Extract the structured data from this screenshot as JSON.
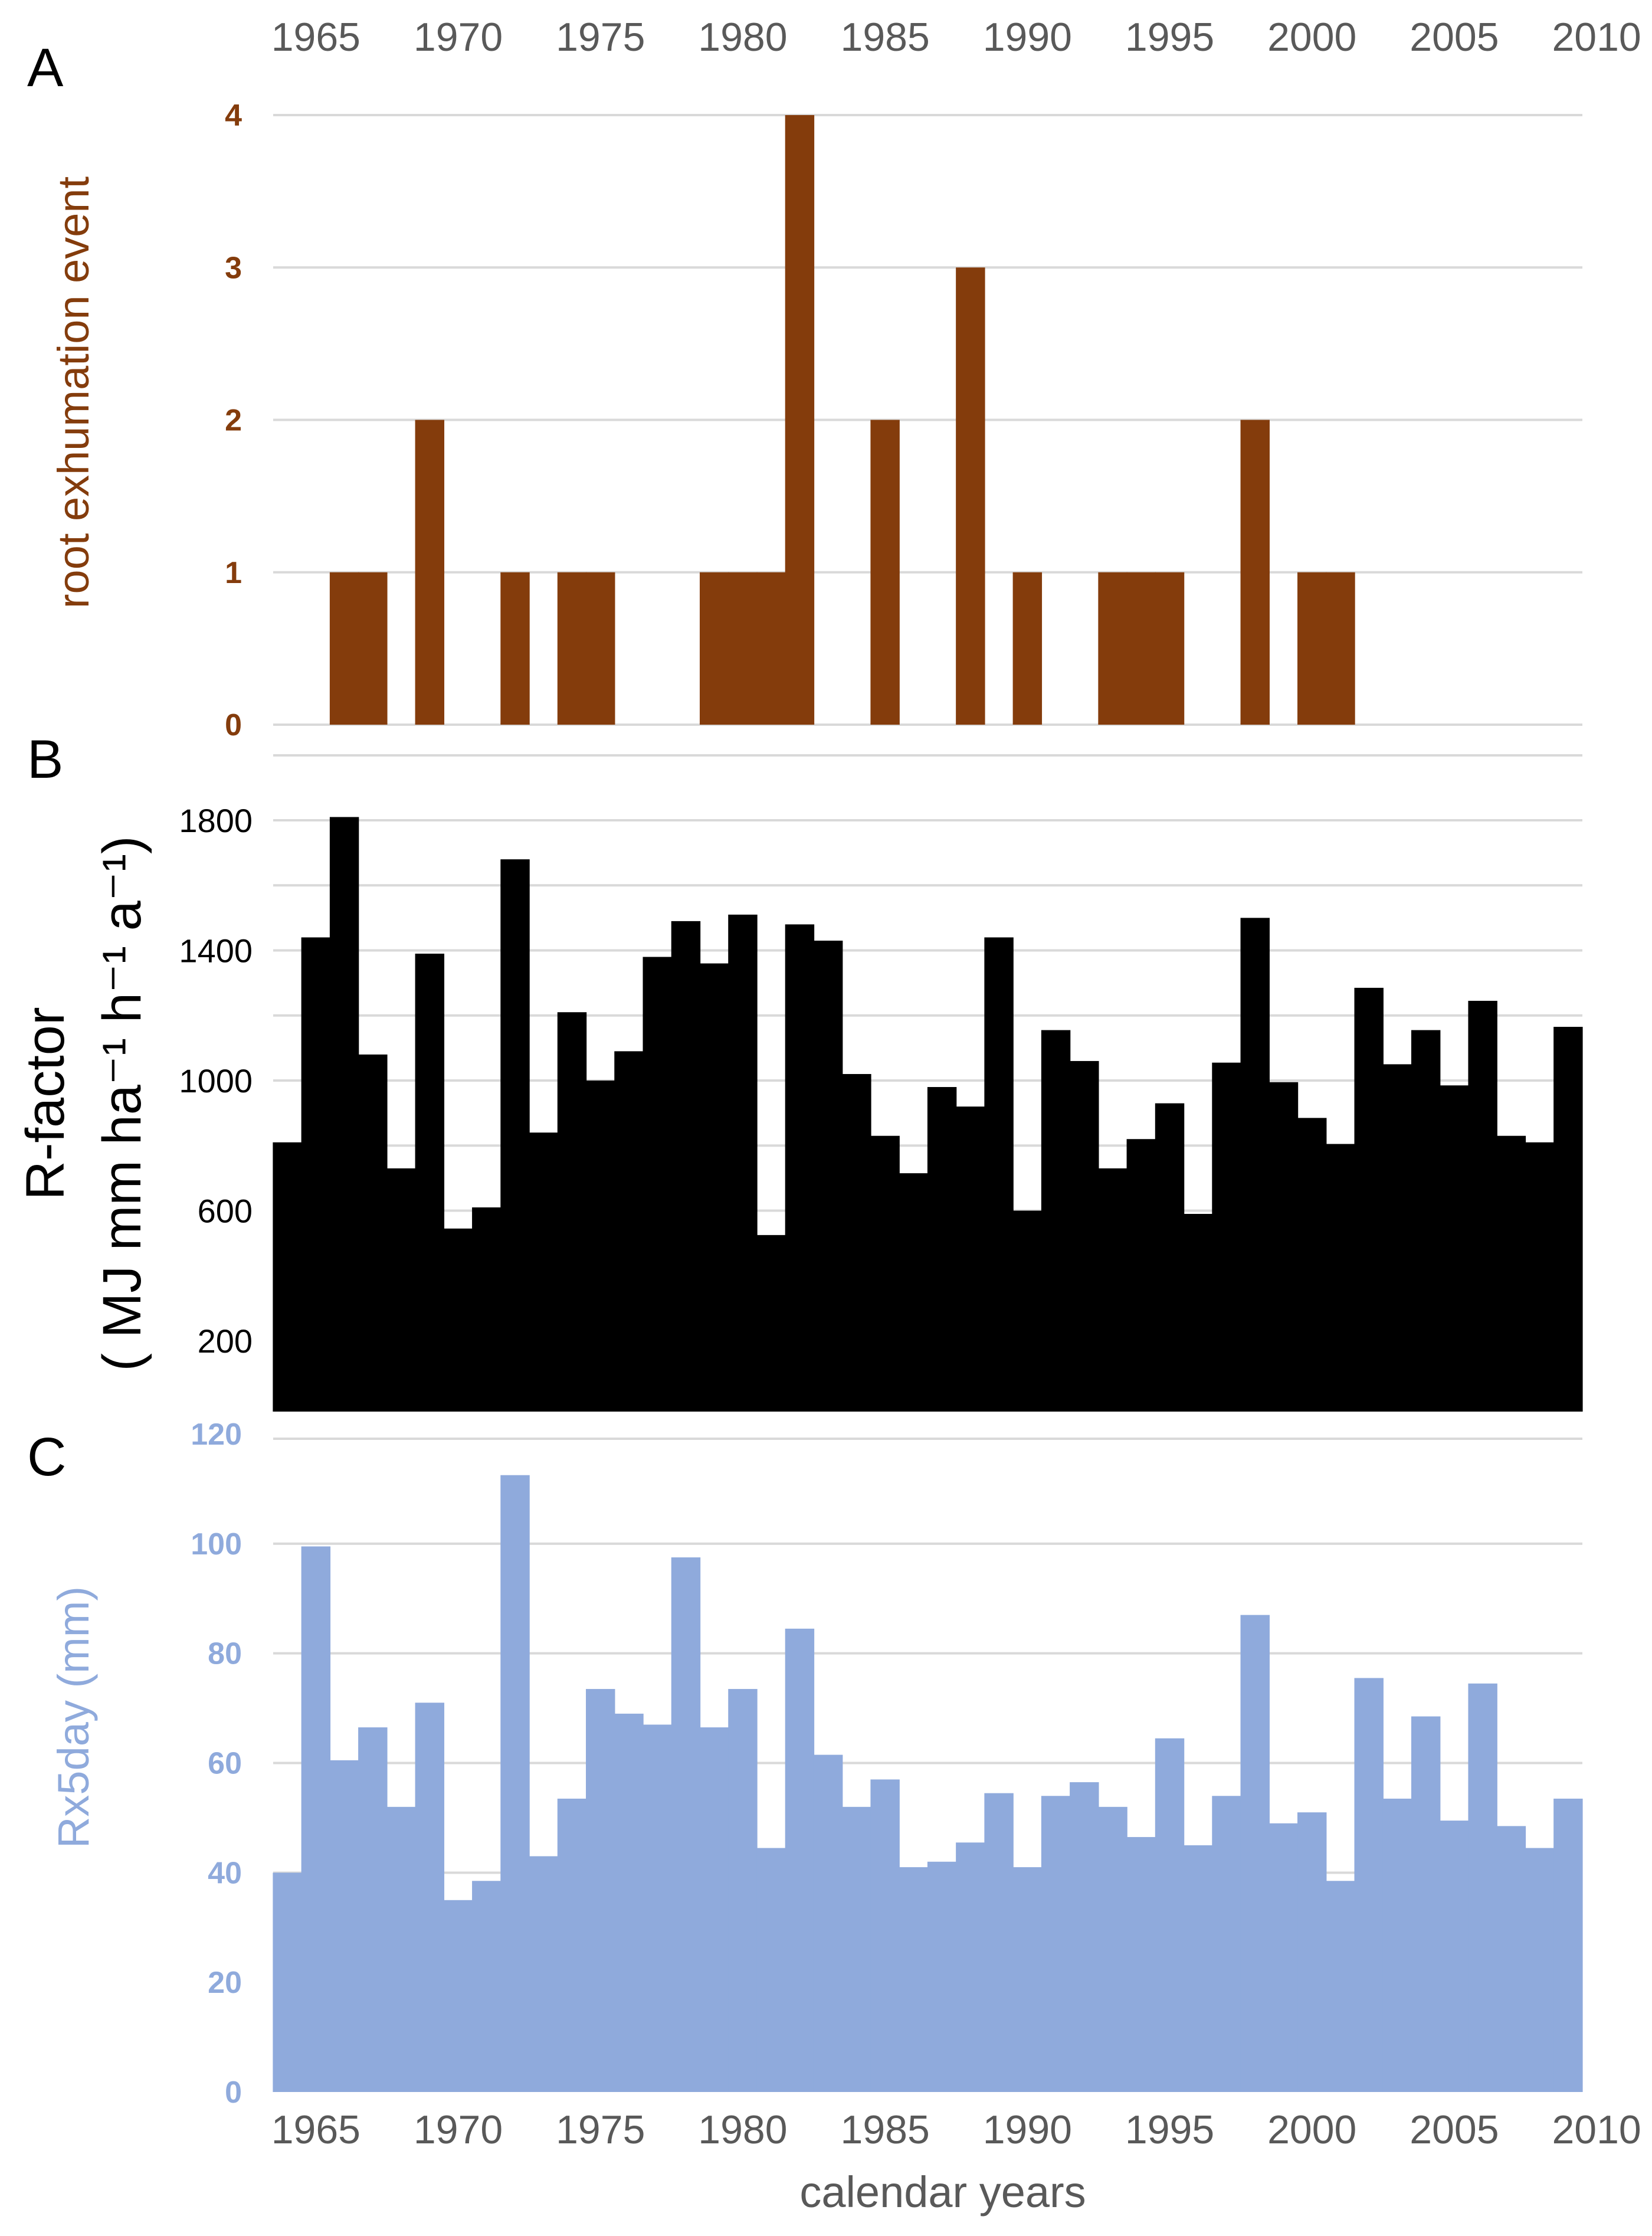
{
  "top_axis": {
    "ticks": [
      "1965",
      "1970",
      "1975",
      "1980",
      "1985",
      "1990",
      "1995",
      "2000",
      "2005",
      "2010"
    ]
  },
  "bottom_axis": {
    "ticks": [
      "1965",
      "1970",
      "1975",
      "1980",
      "1985",
      "1990",
      "1995",
      "2000",
      "2005",
      "2010"
    ],
    "label": "calendar years"
  },
  "colors": {
    "panel_a": "#843c0c",
    "panel_b": "#000000",
    "panel_c": "#8faadc",
    "gridline": "#d9d9d9",
    "axis_text": "#595959"
  },
  "chart_data": [
    {
      "type": "bar",
      "panel": "A",
      "ylabel": "root exhumation event",
      "ylim": [
        0,
        4
      ],
      "yticks": [
        "0",
        "1",
        "2",
        "3",
        "4"
      ],
      "xlim": [
        1964,
        2010
      ],
      "grid": true,
      "x": [
        1966,
        1967,
        1969,
        1972,
        1974,
        1975,
        1979,
        1980,
        1981,
        1982,
        1985,
        1988,
        1990,
        1993,
        1994,
        1995,
        1998,
        2000,
        2001
      ],
      "values": [
        1,
        1,
        2,
        1,
        1,
        1,
        1,
        1,
        1,
        4,
        2,
        3,
        1,
        1,
        1,
        1,
        2,
        1,
        1
      ]
    },
    {
      "type": "bar",
      "panel": "B",
      "ylabel": "R-factor",
      "ylabel_line2": "( MJ mm ha⁻¹ h⁻¹ a⁻¹)",
      "ylim": [
        0,
        1900
      ],
      "yticks": [
        "200",
        "600",
        "1000",
        "1400",
        "1800"
      ],
      "xlim": [
        1964,
        2010
      ],
      "grid": true,
      "x": [
        1964,
        1965,
        1966,
        1967,
        1968,
        1969,
        1970,
        1971,
        1972,
        1973,
        1974,
        1975,
        1976,
        1977,
        1978,
        1979,
        1980,
        1981,
        1982,
        1983,
        1984,
        1985,
        1986,
        1987,
        1988,
        1989,
        1990,
        1991,
        1992,
        1993,
        1994,
        1995,
        1996,
        1997,
        1998,
        1999,
        2000,
        2001,
        2002,
        2003,
        2004,
        2005,
        2006,
        2007,
        2008,
        2009
      ],
      "values": [
        810,
        1440,
        1810,
        1080,
        730,
        1390,
        545,
        610,
        1680,
        840,
        1210,
        1000,
        1090,
        1380,
        1490,
        1360,
        1510,
        525,
        1480,
        1430,
        1020,
        830,
        715,
        980,
        920,
        1440,
        600,
        1155,
        1060,
        730,
        820,
        930,
        590,
        1055,
        1500,
        995,
        885,
        805,
        1285,
        1050,
        1155,
        985,
        1245,
        830,
        810,
        1165
      ]
    },
    {
      "type": "bar",
      "panel": "C",
      "ylabel": "Rx5day (mm)",
      "ylim": [
        0,
        120
      ],
      "yticks": [
        "0",
        "20",
        "40",
        "60",
        "80",
        "100",
        "120"
      ],
      "xlim": [
        1964,
        2010
      ],
      "grid": true,
      "x": [
        1964,
        1965,
        1966,
        1967,
        1968,
        1969,
        1970,
        1971,
        1972,
        1973,
        1974,
        1975,
        1976,
        1977,
        1978,
        1979,
        1980,
        1981,
        1982,
        1983,
        1984,
        1985,
        1986,
        1987,
        1988,
        1989,
        1990,
        1991,
        1992,
        1993,
        1994,
        1995,
        1996,
        1997,
        1998,
        1999,
        2000,
        2001,
        2002,
        2003,
        2004,
        2005,
        2006,
        2007,
        2008,
        2009
      ],
      "values": [
        40,
        99.5,
        60.5,
        66.5,
        52,
        71,
        35,
        38.5,
        112.5,
        43,
        53.5,
        73.5,
        69,
        67,
        97.5,
        66.5,
        73.5,
        44.5,
        84.5,
        61.5,
        52,
        57,
        41,
        42,
        45.5,
        54.5,
        41,
        54,
        56.5,
        52,
        46.5,
        64.5,
        45,
        54,
        87,
        49,
        51,
        38.5,
        75.5,
        53.5,
        68.5,
        49.5,
        74.5,
        48.5,
        44.5,
        53.5
      ]
    }
  ],
  "panels": {
    "a_letter": "A",
    "b_letter": "B",
    "c_letter": "C"
  }
}
